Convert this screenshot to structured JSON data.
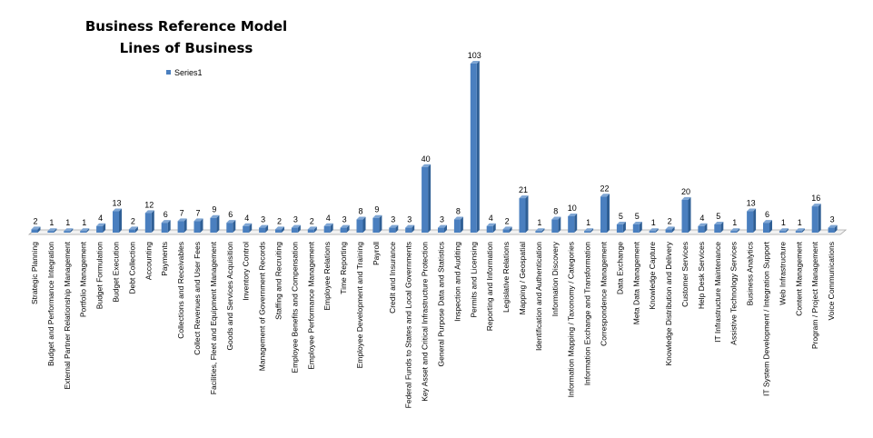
{
  "chart_data": {
    "type": "bar",
    "title_lines": [
      "Business Reference Model",
      "Lines of Business"
    ],
    "legend": [
      "Series1"
    ],
    "series_color": "#4a7fbf",
    "categories": [
      "Strategic Planning",
      "Budget and Performance Integration",
      "External Partner Relationship Management",
      "Portfolio Management",
      "Budget Formulation",
      "Budget Execution",
      "Debt Collection",
      "Accounting",
      "Payments",
      "Collections and Receivables",
      "Collect Revenues and User Fees",
      "Facilities, Fleet and Equipment Management",
      "Goods and Services Acquisition",
      "Inventory Control",
      "Management of Government Records",
      "Staffing and Recruiting",
      "Employee Benefits and Compensation",
      "Employee Performance Management",
      "Employee Relations",
      "Time Reporting",
      "Employee Development and Training",
      "Payroll",
      "Credit and Insurance",
      "Federal Funds to States and Local Governments",
      "Key Asset and Critical Infrastructure Protection",
      "General Purpose Data and Statistics",
      "Inspection and Auditing",
      "Permits and Licensing",
      "Reporting and Information",
      "Legislative Relations",
      "Mapping / Geospatial",
      "Identification and Authentication",
      "Information Discovery",
      "Information Mapping / Taxonomy / Categories",
      "Information Exchange and Transformation",
      "Correspondence Management",
      "Data Exchange",
      "Meta Data Management",
      "Knowledge Capture",
      "Knowledge Distribution and Delivery",
      "Customer Services",
      "Help Desk Services",
      "IT Infrastructure Maintenance",
      "Assistive Technology Services",
      "Business Analytics",
      "IT System Development / Integration Support",
      "Web Infrastructure",
      "Content Management",
      "Program / Project Management",
      "Voice Communications"
    ],
    "series": [
      {
        "name": "Series1",
        "values": [
          2,
          1,
          1,
          1,
          4,
          13,
          2,
          12,
          6,
          7,
          7,
          9,
          6,
          4,
          3,
          2,
          3,
          2,
          4,
          3,
          8,
          9,
          3,
          3,
          40,
          3,
          8,
          103,
          4,
          2,
          21,
          1,
          8,
          10,
          1,
          22,
          5,
          5,
          1,
          2,
          20,
          4,
          5,
          1,
          13,
          6,
          1,
          1,
          16,
          3
        ]
      }
    ],
    "ylim": [
      0,
      103
    ],
    "grid": false,
    "legend_position": "top-left"
  }
}
